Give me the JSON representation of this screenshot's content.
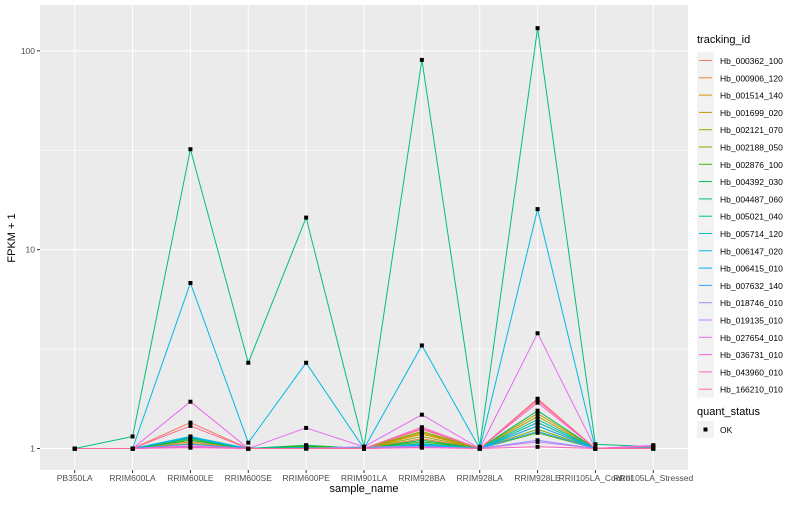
{
  "chart_data": {
    "type": "line",
    "title": "",
    "xlabel": "sample_name",
    "ylabel": "FPKM + 1",
    "yscale": "log10",
    "ylim": [
      0.78,
      170
    ],
    "yticks": [
      1,
      10,
      100
    ],
    "ytick_labels": [
      "1",
      "10",
      "100"
    ],
    "grid": true,
    "legend_position": "right",
    "categories": [
      "PB350LA",
      "RRIM600LA",
      "RRIM600LE",
      "RRIM600SE",
      "RRIM600PE",
      "RRIM901LA",
      "RRIM928BA",
      "RRIM928LA",
      "RRIM928LE",
      "RRII105LA_Control",
      "RRII105LA_Stressed"
    ],
    "color_legend_title": "tracking_id",
    "shape_legend_title": "quant_status",
    "shape_legend_entries": [
      "OK"
    ],
    "series": [
      {
        "name": "Hb_000362_100",
        "color": "#F8766D",
        "values": [
          1,
          1,
          1.35,
          1,
          1.01,
          1,
          1.25,
          1,
          1.75,
          1,
          1
        ]
      },
      {
        "name": "Hb_000906_120",
        "color": "#EA8331",
        "values": [
          1,
          1,
          1.08,
          1,
          1.01,
          1,
          1.12,
          1,
          1.35,
          1,
          1
        ]
      },
      {
        "name": "Hb_001514_140",
        "color": "#D89000",
        "values": [
          1,
          1,
          1.1,
          1,
          1.02,
          1,
          1.18,
          1,
          1.3,
          1,
          1
        ]
      },
      {
        "name": "Hb_001699_020",
        "color": "#C09B00",
        "values": [
          1,
          1,
          1.05,
          1,
          1.01,
          1,
          1.2,
          1,
          1.5,
          1,
          1
        ]
      },
      {
        "name": "Hb_002121_070",
        "color": "#A3A500",
        "values": [
          1,
          1,
          1.06,
          1,
          1.02,
          1,
          1.15,
          1,
          1.45,
          1,
          1
        ]
      },
      {
        "name": "Hb_002188_050",
        "color": "#7CAE00",
        "values": [
          1,
          1,
          1.1,
          1,
          1.03,
          1,
          1.22,
          1,
          1.25,
          1,
          1
        ]
      },
      {
        "name": "Hb_002876_100",
        "color": "#39B600",
        "values": [
          1,
          1,
          1.12,
          1,
          1.03,
          1,
          1.08,
          1,
          1.2,
          1,
          1
        ]
      },
      {
        "name": "Hb_004392_030",
        "color": "#00BB4E",
        "values": [
          1,
          1,
          1.1,
          1,
          1.04,
          1,
          1.1,
          1,
          1.55,
          1,
          1.01
        ]
      },
      {
        "name": "Hb_004487_060",
        "color": "#00BF7D",
        "values": [
          1,
          1.15,
          32,
          2.7,
          14.5,
          1.02,
          90,
          1.02,
          130,
          1.05,
          1.02
        ]
      },
      {
        "name": "Hb_005021_040",
        "color": "#00C1A3",
        "values": [
          1,
          1,
          1.13,
          1,
          1.01,
          1,
          1.05,
          1,
          1.4,
          1,
          1
        ]
      },
      {
        "name": "Hb_005714_120",
        "color": "#00BFC4",
        "values": [
          1,
          1,
          1.15,
          1,
          1.01,
          1,
          1.06,
          1,
          1.35,
          1,
          1
        ]
      },
      {
        "name": "Hb_006147_020",
        "color": "#00BAE0",
        "values": [
          1,
          1,
          6.8,
          1.07,
          2.7,
          1,
          3.3,
          1,
          16,
          1,
          1
        ]
      },
      {
        "name": "Hb_006415_010",
        "color": "#00B0F6",
        "values": [
          1,
          1,
          1.14,
          1,
          1.01,
          1,
          1.04,
          1,
          1.3,
          1,
          1
        ]
      },
      {
        "name": "Hb_007632_140",
        "color": "#35A2FF",
        "values": [
          1,
          1,
          1.05,
          1,
          1,
          1,
          1.03,
          1,
          1.22,
          1,
          1
        ]
      },
      {
        "name": "Hb_018746_010",
        "color": "#9590FF",
        "values": [
          1,
          1,
          1.02,
          1,
          1,
          1,
          1.02,
          1,
          1.1,
          1,
          1.02
        ]
      },
      {
        "name": "Hb_019135_010",
        "color": "#C77CFF",
        "values": [
          1,
          1,
          1.02,
          1,
          1,
          1.02,
          1.02,
          1,
          1.08,
          1,
          1.04
        ]
      },
      {
        "name": "Hb_027654_010",
        "color": "#E76BF3",
        "values": [
          1,
          1,
          1.72,
          1,
          1.27,
          1.02,
          1.48,
          1,
          3.8,
          1,
          1.03
        ]
      },
      {
        "name": "Hb_036731_010",
        "color": "#FA62DB",
        "values": [
          1,
          1,
          1.03,
          1,
          1,
          1,
          1.28,
          1,
          1.7,
          1,
          1
        ]
      },
      {
        "name": "Hb_043960_010",
        "color": "#FF62BC",
        "values": [
          1,
          1,
          1.01,
          1,
          1,
          1,
          1.01,
          1,
          1.02,
          1,
          1.03
        ]
      },
      {
        "name": "Hb_166210_010",
        "color": "#FF6C91",
        "values": [
          1,
          1,
          1.3,
          1,
          1,
          1,
          1.26,
          1,
          1.78,
          1,
          1
        ]
      }
    ]
  }
}
